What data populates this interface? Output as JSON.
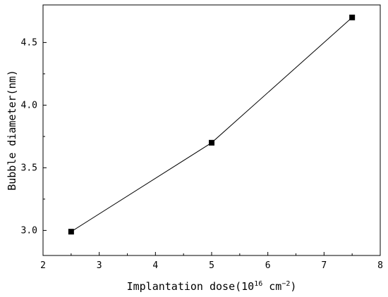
{
  "chart_data": {
    "type": "line",
    "title": "",
    "xlabel": {
      "prefix": "Implantation dose(10",
      "exp1": "16",
      "middle": " cm",
      "exp2": "−2",
      "suffix": ")"
    },
    "ylabel": "Bubble diameter(nm)",
    "xlim": [
      2,
      8
    ],
    "ylim": [
      2.8,
      4.8
    ],
    "xticks": [
      2,
      3,
      4,
      5,
      6,
      7,
      8
    ],
    "yticks": [
      3.0,
      3.5,
      4.0,
      4.5
    ],
    "ytick_labels": [
      "3.0",
      "3.5",
      "4.0",
      "4.5"
    ],
    "series": [
      {
        "x": [
          2.5,
          5,
          7.5
        ],
        "y": [
          2.99,
          3.7,
          4.7
        ],
        "marker": "square",
        "color": "#000000"
      }
    ],
    "grid": false,
    "legend": "none"
  }
}
